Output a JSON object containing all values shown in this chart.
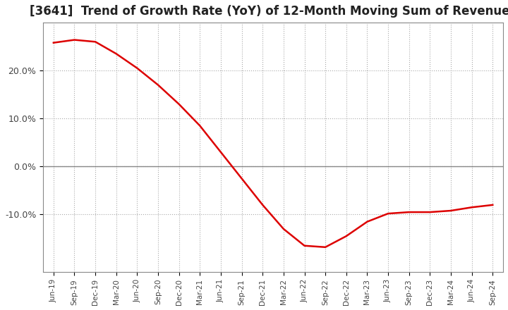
{
  "title": "[3641]  Trend of Growth Rate (YoY) of 12-Month Moving Sum of Revenues",
  "title_fontsize": 12,
  "line_color": "#dd0000",
  "background_color": "#ffffff",
  "plot_bg_color": "#ffffff",
  "grid_color": "#aaaaaa",
  "zero_line_color": "#888888",
  "x_labels": [
    "Jun-19",
    "Sep-19",
    "Dec-19",
    "Mar-20",
    "Jun-20",
    "Sep-20",
    "Dec-20",
    "Mar-21",
    "Jun-21",
    "Sep-21",
    "Dec-21",
    "Mar-22",
    "Jun-22",
    "Sep-22",
    "Dec-22",
    "Mar-23",
    "Jun-23",
    "Sep-23",
    "Dec-23",
    "Mar-24",
    "Jun-24",
    "Sep-24"
  ],
  "y_values": [
    25.8,
    26.4,
    26.0,
    23.5,
    20.5,
    17.0,
    13.0,
    8.5,
    3.0,
    -2.5,
    -8.0,
    -13.0,
    -16.5,
    -16.8,
    -14.5,
    -11.5,
    -9.8,
    -9.5,
    -9.5,
    -9.2,
    -8.5,
    -8.0
  ],
  "ylim_min": -22,
  "ylim_max": 30,
  "yticks": [
    -10,
    0,
    10,
    20
  ],
  "ytick_labels": [
    "-10.0%",
    "0.0%",
    "10.0%",
    "20.0%"
  ]
}
